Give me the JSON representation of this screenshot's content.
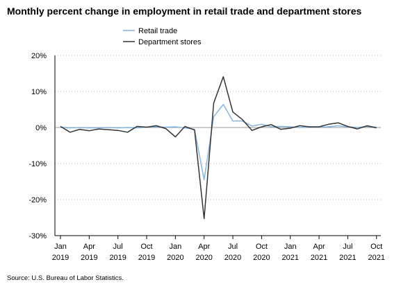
{
  "title": "Monthly percent change in employment in retail trade and department stores",
  "source": "Source: U.S. Bureau of Labor Statistics.",
  "colors": {
    "retail": "#7fb2e0",
    "department": "#333333",
    "grid": "#b0b0b0",
    "axis": "#000000"
  },
  "chart_data": {
    "type": "line",
    "title": "Monthly percent change in employment in retail trade and department stores",
    "xlabel": "",
    "ylabel": "",
    "ylim": [
      -30,
      20
    ],
    "yticks": [
      20,
      10,
      0,
      -10,
      -20,
      -30
    ],
    "ytick_labels": [
      "20%",
      "10%",
      "0%",
      "-10%",
      "-20%",
      "-30%"
    ],
    "grid": "horizontal dotted",
    "legend_position": "top-center",
    "x": [
      "Jan 2019",
      "Feb 2019",
      "Mar 2019",
      "Apr 2019",
      "May 2019",
      "Jun 2019",
      "Jul 2019",
      "Aug 2019",
      "Sep 2019",
      "Oct 2019",
      "Nov 2019",
      "Dec 2019",
      "Jan 2020",
      "Feb 2020",
      "Mar 2020",
      "Apr 2020",
      "May 2020",
      "Jun 2020",
      "Jul 2020",
      "Aug 2020",
      "Sep 2020",
      "Oct 2020",
      "Nov 2020",
      "Dec 2020",
      "Jan 2021",
      "Feb 2021",
      "Mar 2021",
      "Apr 2021",
      "May 2021",
      "Jun 2021",
      "Jul 2021",
      "Aug 2021",
      "Sep 2021",
      "Oct 2021"
    ],
    "xticks": [
      {
        "month": "Jan",
        "year": "2019",
        "index": 0
      },
      {
        "month": "Apr",
        "year": "2019",
        "index": 3
      },
      {
        "month": "Jul",
        "year": "2019",
        "index": 6
      },
      {
        "month": "Oct",
        "year": "2019",
        "index": 9
      },
      {
        "month": "Jan",
        "year": "2020",
        "index": 12
      },
      {
        "month": "Apr",
        "year": "2020",
        "index": 15
      },
      {
        "month": "Jul",
        "year": "2020",
        "index": 18
      },
      {
        "month": "Oct",
        "year": "2020",
        "index": 21
      },
      {
        "month": "Jan",
        "year": "2021",
        "index": 24
      },
      {
        "month": "Apr",
        "year": "2021",
        "index": 27
      },
      {
        "month": "Jul",
        "year": "2021",
        "index": 30
      },
      {
        "month": "Oct",
        "year": "2021",
        "index": 33
      }
    ],
    "series": [
      {
        "name": "Retail trade",
        "color": "#7fb2e0",
        "values": [
          0.1,
          -0.1,
          0.0,
          -0.1,
          -0.1,
          0.0,
          -0.1,
          0.0,
          -0.1,
          0.1,
          0.2,
          0.1,
          0.2,
          -0.1,
          -0.5,
          -14.5,
          3.0,
          6.4,
          1.8,
          1.8,
          0.4,
          0.9,
          0.2,
          0.3,
          0.2,
          0.0,
          0.2,
          0.1,
          0.2,
          0.5,
          0.2,
          0.0,
          0.3,
          0.1
        ]
      },
      {
        "name": "Department stores",
        "color": "#333333",
        "values": [
          0.3,
          -1.3,
          -0.5,
          -0.9,
          -0.4,
          -0.6,
          -0.8,
          -1.3,
          0.3,
          0.1,
          0.5,
          -0.3,
          -2.6,
          0.3,
          -0.7,
          -25.3,
          6.8,
          14.1,
          4.3,
          2.2,
          -0.8,
          0.2,
          0.8,
          -0.5,
          -0.2,
          0.5,
          0.2,
          0.2,
          0.9,
          1.3,
          0.3,
          -0.4,
          0.5,
          -0.1
        ]
      }
    ]
  }
}
